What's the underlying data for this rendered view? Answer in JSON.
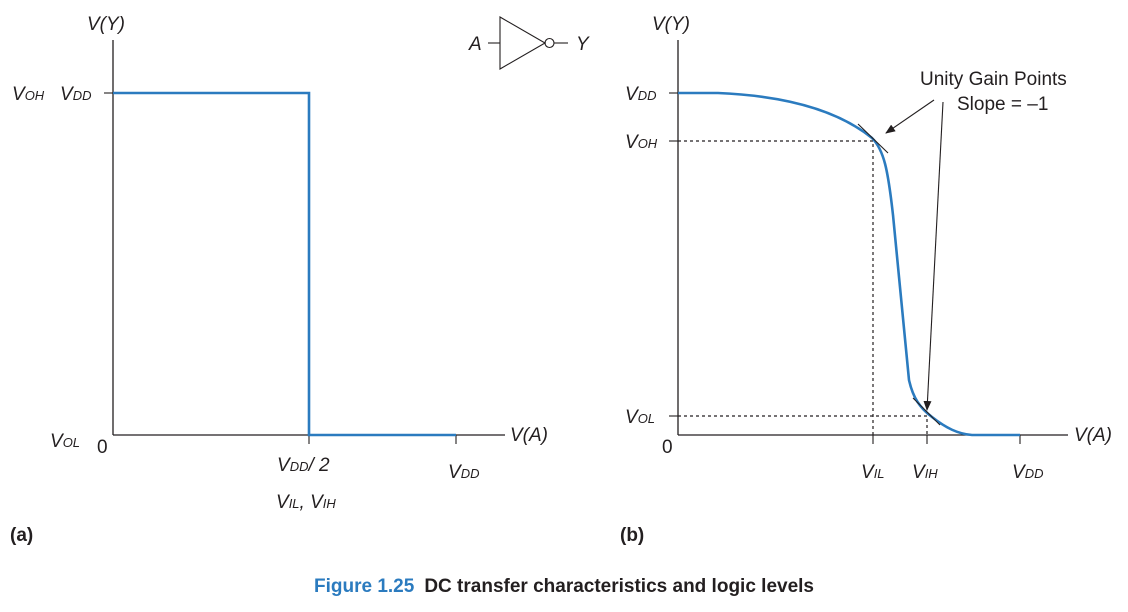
{
  "panel_a": {
    "y_axis_label": "V(Y)",
    "x_axis_label": "V(A)",
    "voh": {
      "main": "V",
      "sub": "OH"
    },
    "vdd_y": {
      "main": "V",
      "sub": "DD"
    },
    "vol": {
      "main": "V",
      "sub": "OL"
    },
    "origin": "0",
    "vdd_half": {
      "main": "V",
      "sub": "DD",
      "tail": "/ 2"
    },
    "vil_vih": {
      "a": "V",
      "a_sub": "IL",
      "sep": ", ",
      "b": "V",
      "b_sub": "IH"
    },
    "vdd_x": {
      "main": "V",
      "sub": "DD"
    },
    "panel_label": "(a)",
    "inverter": {
      "input": "A",
      "output": "Y"
    }
  },
  "panel_b": {
    "y_axis_label": "V(Y)",
    "x_axis_label": "V(A)",
    "vdd_y": {
      "main": "V",
      "sub": "DD"
    },
    "voh": {
      "main": "V",
      "sub": "OH"
    },
    "vol": {
      "main": "V",
      "sub": "OL"
    },
    "origin": "0",
    "vil": {
      "main": "V",
      "sub": "IL"
    },
    "vih": {
      "main": "V",
      "sub": "IH"
    },
    "vdd_x": {
      "main": "V",
      "sub": "DD"
    },
    "annotation_line1": "Unity Gain Points",
    "annotation_line2": "Slope = –1",
    "panel_label": "(b)"
  },
  "caption": {
    "number": "Figure 1.25",
    "text": "DC transfer characteristics and logic levels"
  },
  "colors": {
    "curve": "#2b7bbf",
    "ink": "#231f20",
    "caption_number": "#2b7bbf"
  }
}
